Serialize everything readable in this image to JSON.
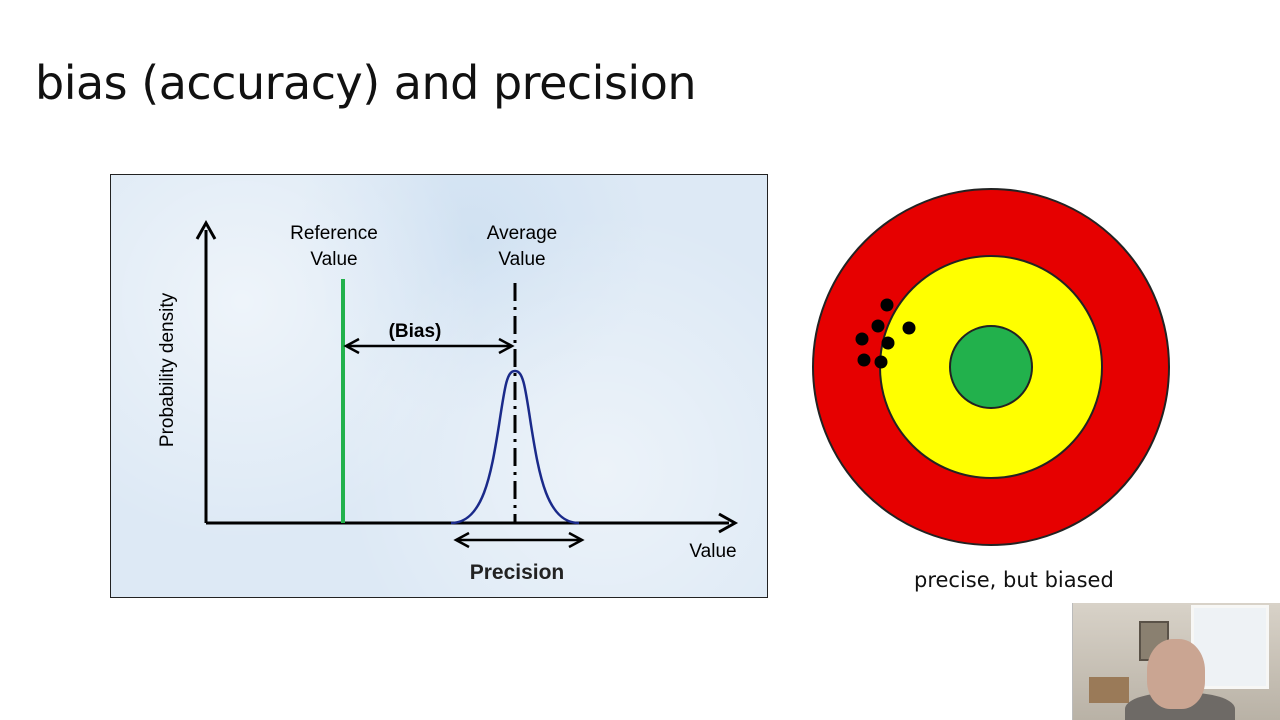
{
  "slide": {
    "title": "bias (accuracy) and precision"
  },
  "diagram": {
    "y_axis_label": "Probability density",
    "x_axis_label": "Value",
    "reference_label_line1": "Reference",
    "reference_label_line2": "Value",
    "average_label_line1": "Average",
    "average_label_line2": "Value",
    "bias_label": "(Bias)",
    "precision_label": "Precision",
    "colors": {
      "reference_line": "#22b14c",
      "curve": "#1a2a8a",
      "axes": "#000000"
    }
  },
  "target": {
    "caption": "precise, but biased",
    "colors": {
      "outer_ring": "#e60000",
      "middle_ring": "#ffff00",
      "bullseye": "#22b14c",
      "hits": "#000000"
    },
    "hit_count": 7
  },
  "webcam": {
    "description_icon": "webcam-video-feed"
  }
}
